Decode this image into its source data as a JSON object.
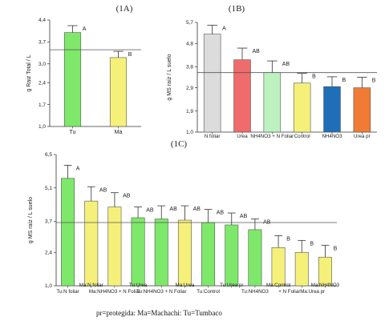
{
  "footer_note": "pr=protegida: Ma=Machachi: Tu=Tumbaco",
  "chart_data": [
    {
      "type": "bar",
      "title": "(1A)",
      "ylabel": "g Raiz Total / L",
      "ylim": [
        1.0,
        4.4
      ],
      "yticks": [
        "1,0",
        "1,7",
        "2,4",
        "3,0",
        "3,7",
        "4,4"
      ],
      "yticks_values": [
        1.0,
        1.7,
        2.4,
        3.0,
        3.7,
        4.4
      ],
      "reference_line": 3.45,
      "categories": [
        "Tu",
        "Ma"
      ],
      "values": [
        4.0,
        3.2
      ],
      "errors": [
        0.22,
        0.2
      ],
      "letters": [
        "A",
        "B"
      ],
      "colors": [
        "#7ee86a",
        "#f5f07a"
      ]
    },
    {
      "type": "bar",
      "title": "(1B)",
      "ylabel": "g MS raíz / L suelo",
      "ylim": [
        1.0,
        5.7
      ],
      "yticks": [
        "1,0",
        "1,9",
        "2,9",
        "3,8",
        "4,8",
        "5,7"
      ],
      "yticks_values": [
        1.0,
        1.9,
        2.9,
        3.8,
        4.8,
        5.7
      ],
      "reference_line": 3.55,
      "categories": [
        "N foliar",
        "Urea",
        "NH4NO3 + N Foliar",
        "Control",
        "NH4NO3",
        "Urea pr"
      ],
      "values": [
        5.2,
        4.1,
        3.55,
        3.1,
        2.95,
        2.9
      ],
      "errors": [
        0.38,
        0.5,
        0.5,
        0.42,
        0.42,
        0.45
      ],
      "letters": [
        "A",
        "AB",
        "AB",
        "B",
        "B",
        "B"
      ],
      "colors": [
        "#dcdcdc",
        "#f06b6b",
        "#bdf2c0",
        "#f5f07a",
        "#1f6fb8",
        "#f07b35"
      ]
    },
    {
      "type": "bar",
      "title": "(1C)",
      "ylabel": "g MS raíz / L suelo",
      "ylim": [
        1.0,
        6.5
      ],
      "yticks": [
        "1,0",
        "2,4",
        "3,7",
        "5,1",
        "6,5"
      ],
      "yticks_values": [
        1.0,
        2.4,
        3.7,
        5.1,
        6.5
      ],
      "reference_line": 3.65,
      "categories": [
        "Tu:N foliar",
        "Ma:N foliar",
        "Ma:NH4NO3 + N Foliar",
        "Tu:Urea",
        "Tu:NH4NO3 + N Foliar",
        "Ma:Urea",
        "Tu:Control",
        "Tu:Urea pr",
        "Tu:NH4NO3",
        "Ma:Control",
        "Ma:Urea pr",
        "Ma:NH4NO3"
      ],
      "category_labels_row1": [
        "Tu:N foliar",
        "",
        "Ma:NH4NO3 + N Foliar",
        "",
        "Tu:NH4NO3 + N Foliar",
        "",
        "Tu:Control",
        "",
        "Tu:NH4NO3",
        "",
        "+ N FoliarMa:Urea pr",
        ""
      ],
      "category_labels_row2": [
        "",
        "Ma:N foliar",
        "",
        "Tu:Urea",
        "",
        "Ma:Urea",
        "",
        "Tu:Urea pr",
        "",
        "Ma:Control",
        "",
        "Ma:NH4NO3"
      ],
      "values": [
        5.5,
        4.55,
        4.3,
        3.85,
        3.8,
        3.75,
        3.65,
        3.55,
        3.35,
        2.6,
        2.4,
        2.2
      ],
      "errors": [
        0.55,
        0.6,
        0.6,
        0.45,
        0.55,
        0.6,
        0.55,
        0.5,
        0.45,
        0.5,
        0.5,
        0.5
      ],
      "letters": [
        "A",
        "AB",
        "AB",
        "AB",
        "AB",
        "AB",
        "AB",
        "AB",
        "AB",
        "B",
        "B",
        "B"
      ],
      "colors": [
        "#7ee86a",
        "#f5f07a",
        "#f5f07a",
        "#7ee86a",
        "#7ee86a",
        "#f5f07a",
        "#7ee86a",
        "#7ee86a",
        "#7ee86a",
        "#f5f07a",
        "#f5f07a",
        "#f5f07a"
      ]
    }
  ]
}
